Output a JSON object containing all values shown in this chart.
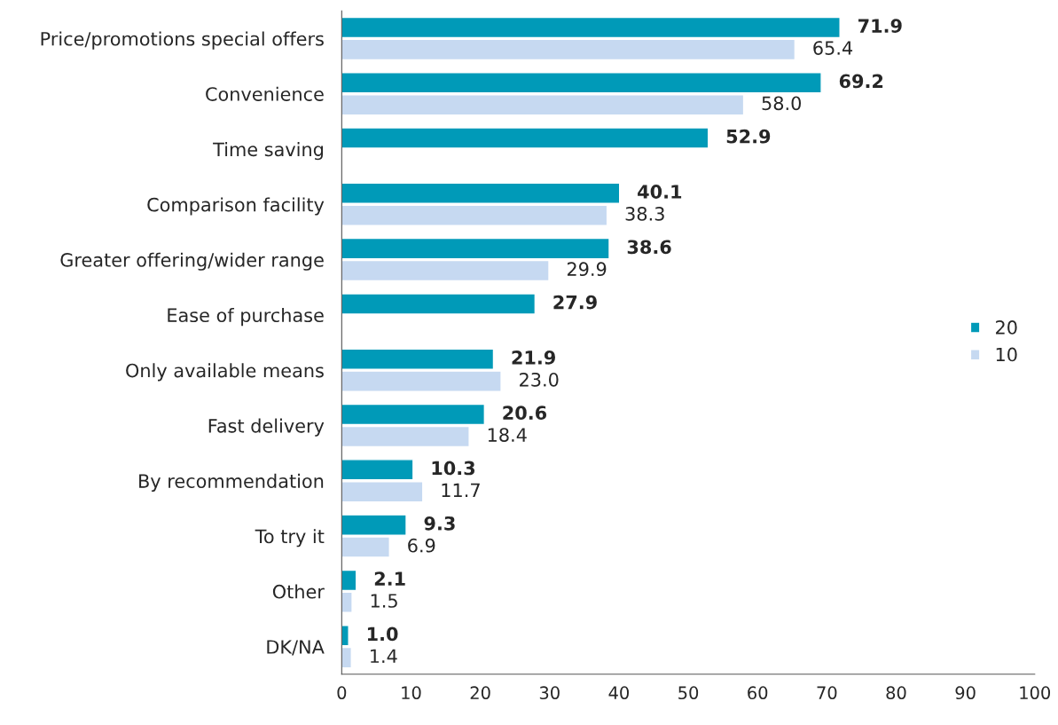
{
  "chart_data": {
    "type": "bar",
    "orientation": "horizontal",
    "categories": [
      "Price/promotions special offers",
      "Convenience",
      "Time saving",
      "Comparison facility",
      "Greater offering/wider range",
      "Ease of purchase",
      "Only available means",
      "Fast delivery",
      "By recommendation",
      "To try it",
      "Other",
      "DK/NA"
    ],
    "series": [
      {
        "name": "20",
        "color": "#009ab8",
        "values": [
          71.9,
          69.2,
          52.9,
          40.1,
          38.6,
          27.9,
          21.9,
          20.6,
          10.3,
          9.3,
          2.1,
          1.0
        ],
        "value_labels": [
          "71.9",
          "69.2",
          "52.9",
          "40.1",
          "38.6",
          "27.9",
          "21.9",
          "20.6",
          "10.3",
          "9.3",
          "2.1",
          "1.0"
        ]
      },
      {
        "name": "10",
        "color": "#c6d9f1",
        "values": [
          65.4,
          58.0,
          null,
          38.3,
          29.9,
          null,
          23.0,
          18.4,
          11.7,
          6.9,
          1.5,
          1.4
        ],
        "value_labels": [
          "65.4",
          "58.0",
          null,
          "38.3",
          "29.9",
          null,
          "23.0",
          "18.4",
          "11.7",
          "6.9",
          "1.5",
          "1.4"
        ]
      }
    ],
    "xlim": [
      0,
      100
    ],
    "xticks": [
      0,
      10,
      20,
      30,
      40,
      50,
      60,
      70,
      80,
      90,
      100
    ],
    "grid": false,
    "legend": "right"
  }
}
